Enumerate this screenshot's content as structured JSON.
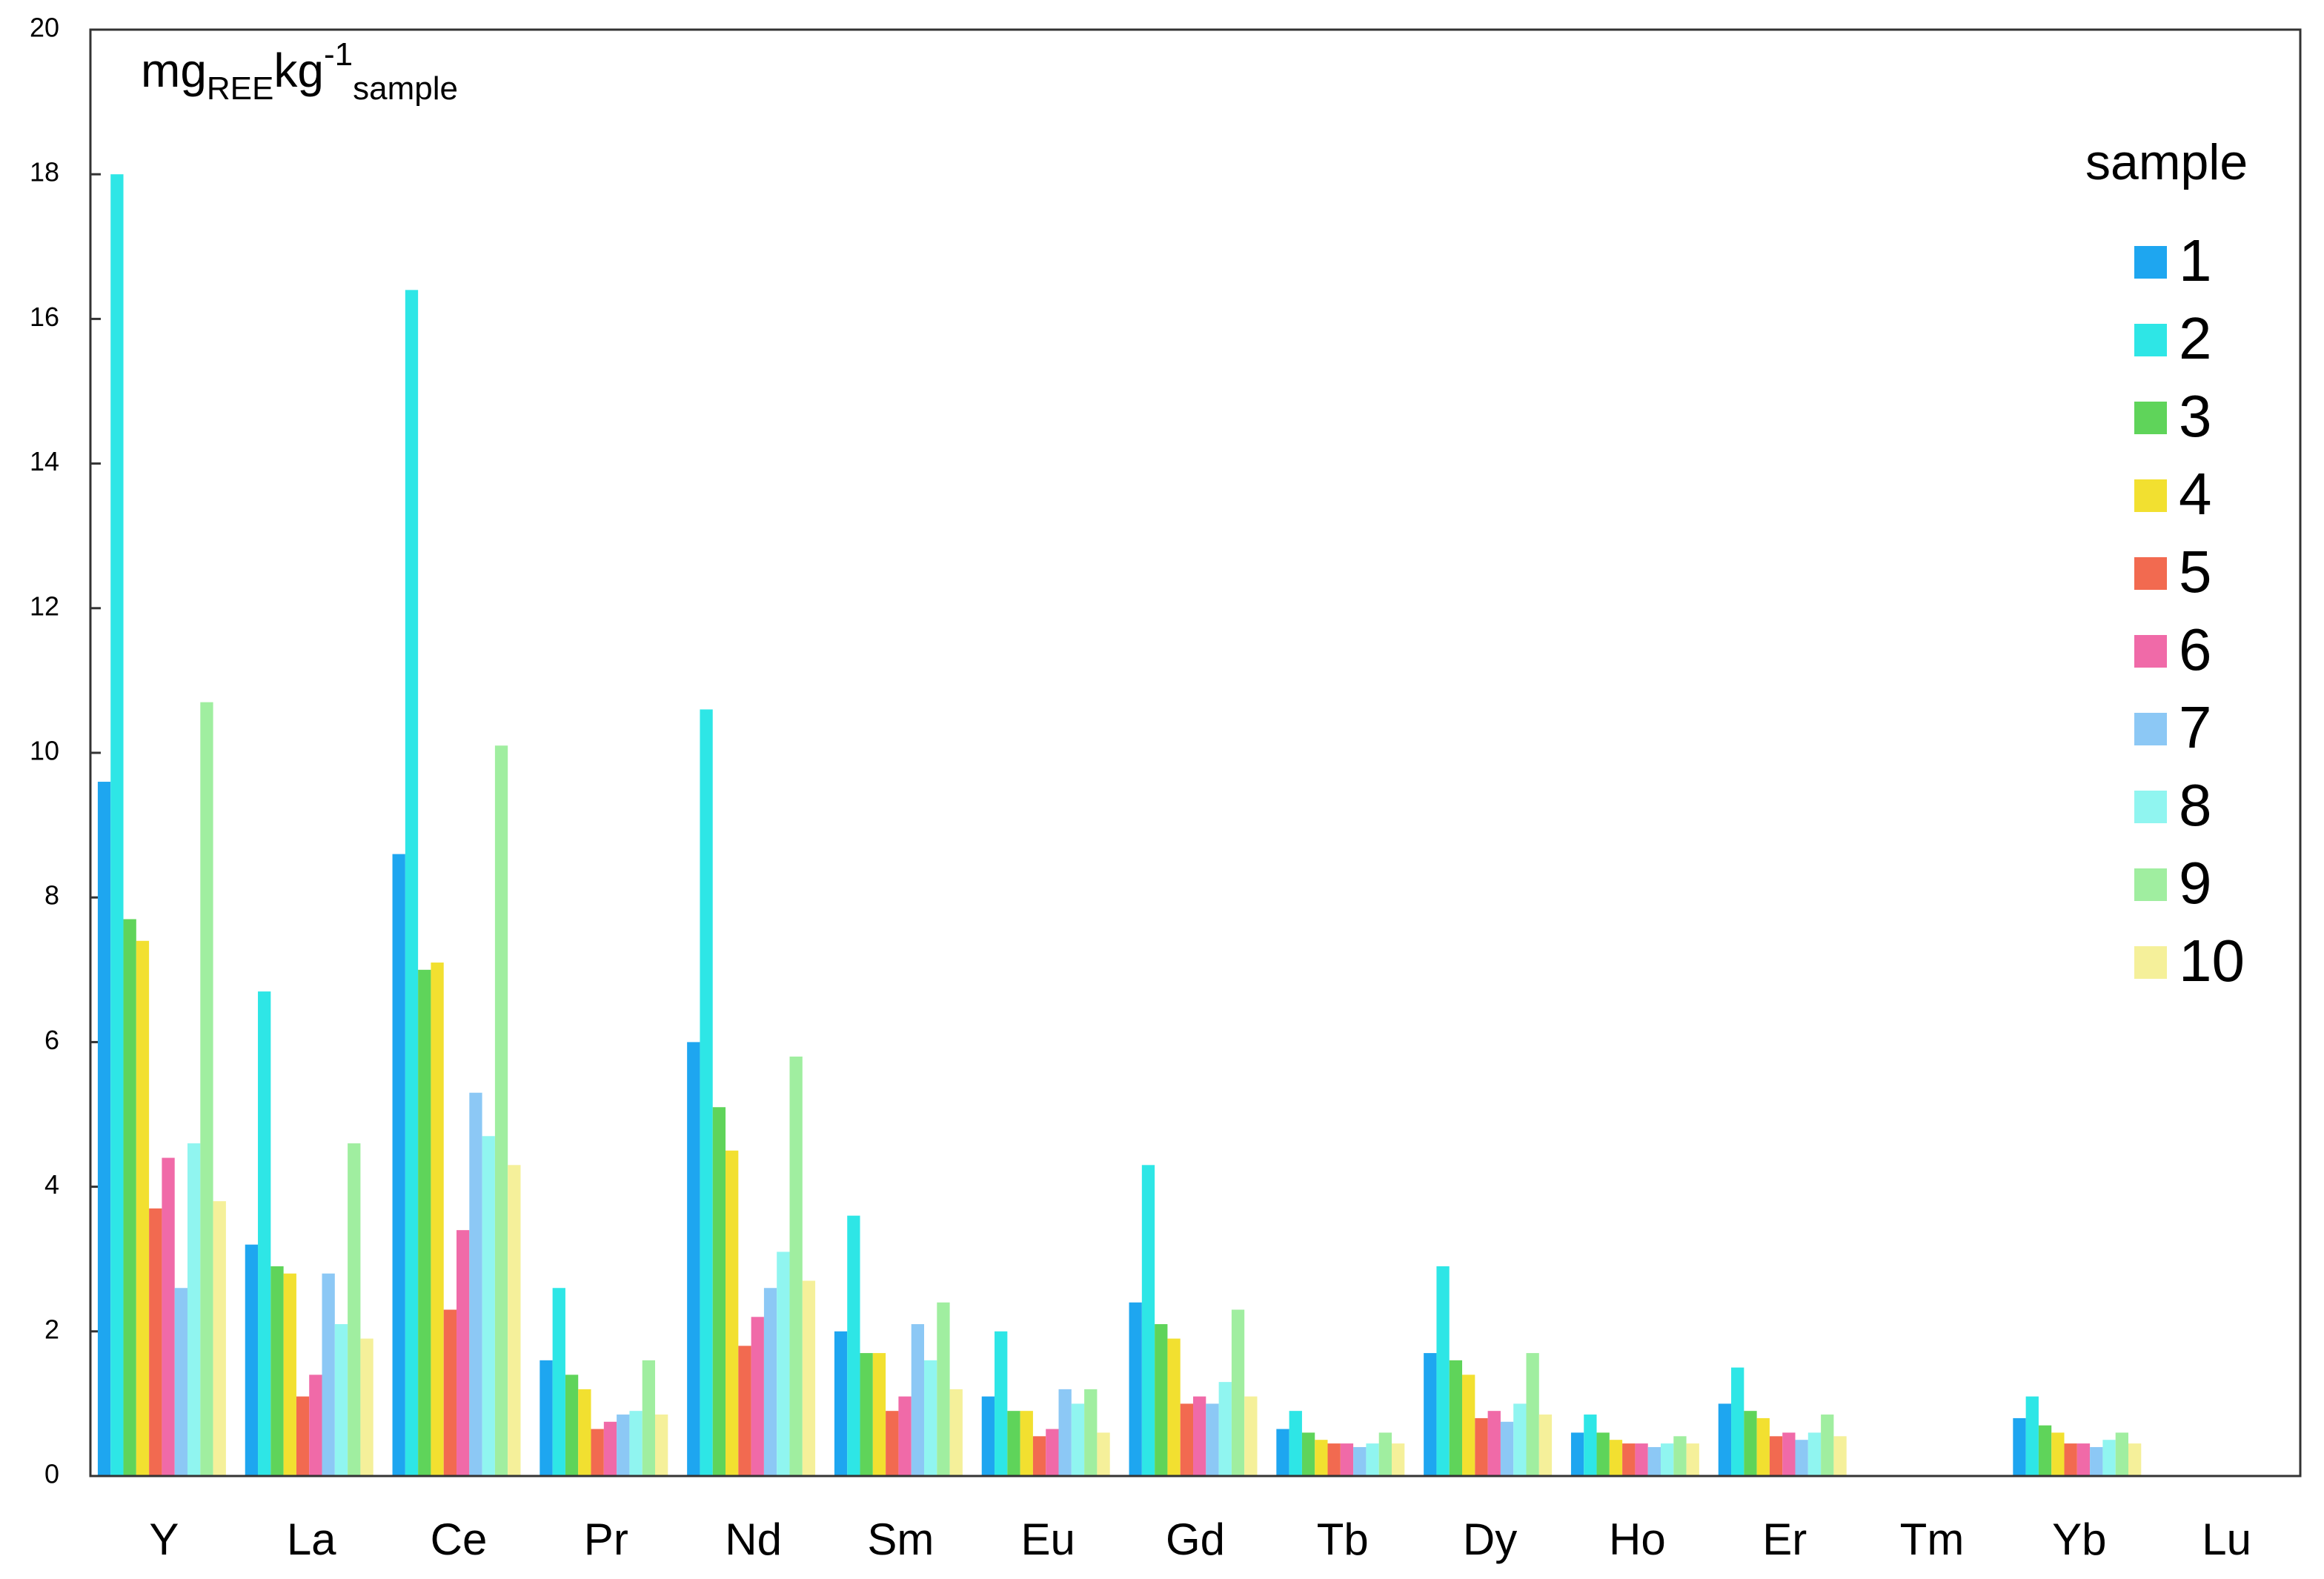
{
  "chart_data": {
    "type": "bar",
    "annotation": [
      "mg",
      "REE",
      "kg",
      "-1",
      "sample"
    ],
    "legend_title": "sample",
    "legend": "upper right",
    "categories": [
      "Y",
      "La",
      "Ce",
      "Pr",
      "Nd",
      "Sm",
      "Eu",
      "Gd",
      "Tb",
      "Dy",
      "Ho",
      "Er",
      "Tm",
      "Yb",
      "Lu"
    ],
    "series": [
      {
        "name": "1",
        "color": "#1ea6f0",
        "values": [
          9.6,
          3.2,
          8.6,
          1.6,
          6.0,
          2.0,
          1.1,
          2.4,
          0.65,
          1.7,
          0.6,
          1.0,
          null,
          0.8,
          null
        ]
      },
      {
        "name": "2",
        "color": "#2ee6e6",
        "values": [
          18.0,
          6.7,
          16.4,
          2.6,
          10.6,
          3.6,
          2.0,
          4.3,
          0.9,
          2.9,
          0.85,
          1.5,
          null,
          1.1,
          null
        ]
      },
      {
        "name": "3",
        "color": "#5fd45a",
        "values": [
          7.7,
          2.9,
          7.0,
          1.4,
          5.1,
          1.7,
          0.9,
          2.1,
          0.6,
          1.6,
          0.6,
          0.9,
          null,
          0.7,
          null
        ]
      },
      {
        "name": "4",
        "color": "#f2e030",
        "values": [
          7.4,
          2.8,
          7.1,
          1.2,
          4.5,
          1.7,
          0.9,
          1.9,
          0.5,
          1.4,
          0.5,
          0.8,
          null,
          0.6,
          null
        ]
      },
      {
        "name": "5",
        "color": "#f26a50",
        "values": [
          3.7,
          1.1,
          2.3,
          0.65,
          1.8,
          0.9,
          0.55,
          1.0,
          0.45,
          0.8,
          0.45,
          0.55,
          null,
          0.45,
          null
        ]
      },
      {
        "name": "6",
        "color": "#f06aa8",
        "values": [
          4.4,
          1.4,
          3.4,
          0.75,
          2.2,
          1.1,
          0.65,
          1.1,
          0.45,
          0.9,
          0.45,
          0.6,
          null,
          0.45,
          null
        ]
      },
      {
        "name": "7",
        "color": "#8cc8f5",
        "values": [
          2.6,
          2.8,
          5.3,
          0.85,
          2.6,
          2.1,
          1.2,
          1.0,
          0.4,
          0.75,
          0.4,
          0.5,
          null,
          0.4,
          null
        ]
      },
      {
        "name": "8",
        "color": "#90f5f0",
        "values": [
          4.6,
          2.1,
          4.7,
          0.9,
          3.1,
          1.6,
          1.0,
          1.3,
          0.45,
          1.0,
          0.45,
          0.6,
          null,
          0.5,
          null
        ]
      },
      {
        "name": "9",
        "color": "#a0eea0",
        "values": [
          10.7,
          4.6,
          10.1,
          1.6,
          5.8,
          2.4,
          1.2,
          2.3,
          0.6,
          1.7,
          0.55,
          0.85,
          null,
          0.6,
          null
        ]
      },
      {
        "name": "10",
        "color": "#f5f09a",
        "values": [
          3.8,
          1.9,
          4.3,
          0.85,
          2.7,
          1.2,
          0.6,
          1.1,
          0.45,
          0.85,
          0.45,
          0.55,
          null,
          0.45,
          null
        ]
      }
    ],
    "ylim": [
      0,
      20
    ],
    "yticks": [
      0,
      2,
      4,
      6,
      8,
      10,
      12,
      14,
      16,
      18,
      20
    ]
  }
}
